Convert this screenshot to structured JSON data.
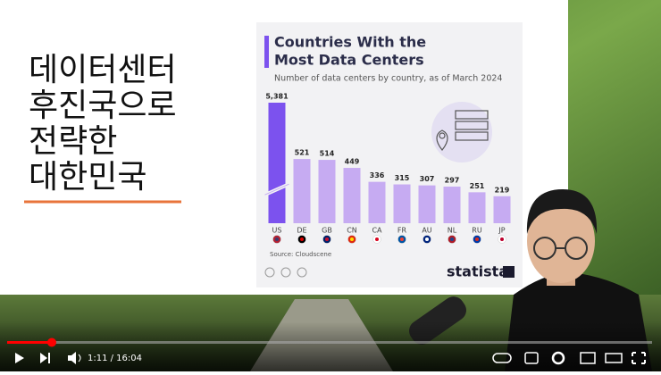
{
  "slide": {
    "title_lines": [
      "데이터센터",
      "후진국으로",
      "전략한",
      "대한민국"
    ]
  },
  "chart_data": {
    "type": "bar",
    "title": [
      "Countries With the",
      "Most Data Centers"
    ],
    "subtitle": "Number of data centers by country, as of March 2024",
    "categories": [
      "US",
      "DE",
      "GB",
      "CN",
      "CA",
      "FR",
      "AU",
      "NL",
      "RU",
      "JP"
    ],
    "values": [
      5381,
      521,
      514,
      449,
      336,
      315,
      307,
      297,
      251,
      219
    ],
    "value_labels": [
      "5,381",
      "521",
      "514",
      "449",
      "336",
      "315",
      "307",
      "297",
      "251",
      "219"
    ],
    "colors": [
      "#7c52ee",
      "#c6abf2",
      "#c6abf2",
      "#c6abf2",
      "#c6abf2",
      "#c6abf2",
      "#c6abf2",
      "#c6abf2",
      "#c6abf2",
      "#c6abf2"
    ],
    "source": "Source: Cloudscene",
    "brand": "statista"
  },
  "player": {
    "time": "1:11 / 16:04"
  }
}
